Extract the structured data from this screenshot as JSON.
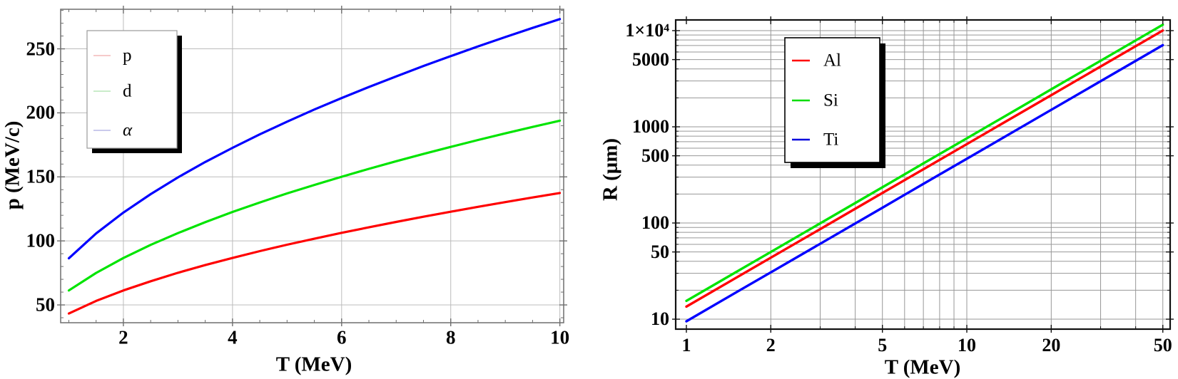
{
  "page": {
    "background": "#ffffff",
    "text_color": "#000000"
  },
  "chart_data": [
    {
      "id": "momentum-vs-kinetic-energy",
      "type": "line",
      "title": "",
      "xlabel": "T (MeV)",
      "ylabel": "p (MeV/c)",
      "xscale": "linear",
      "yscale": "linear",
      "xlim": [
        0.85,
        10.07
      ],
      "ylim": [
        36.1,
        280.9
      ],
      "grid": true,
      "grid_color": "#bcbcbc",
      "frame_color": "#6e6e6e",
      "xgrid": [
        2,
        4,
        6,
        8,
        10
      ],
      "ygrid": [
        50,
        100,
        150,
        200,
        250
      ],
      "xticks": {
        "major": [
          2,
          4,
          6,
          8,
          10
        ],
        "labels": [
          "2",
          "4",
          "6",
          "8",
          "10"
        ],
        "minor": [
          1,
          1.5,
          2.5,
          3,
          3.5,
          4.5,
          5,
          5.5,
          6.5,
          7,
          7.5,
          8.5,
          9,
          9.5
        ]
      },
      "yticks": {
        "major": [
          50,
          100,
          150,
          200,
          250
        ],
        "labels": [
          "50",
          "100",
          "150",
          "200",
          "250"
        ],
        "minor": [
          40,
          60,
          70,
          80,
          90,
          110,
          120,
          130,
          140,
          160,
          170,
          180,
          190,
          210,
          220,
          230,
          240,
          260,
          270,
          280
        ]
      },
      "legend": {
        "position": "top-left",
        "entries": [
          {
            "label": "p",
            "swatch_color": "#f3b9b9",
            "italic": false
          },
          {
            "label": "d",
            "swatch_color": "#b9e6b9",
            "italic": false
          },
          {
            "label": "α",
            "swatch_color": "#b9b9e6",
            "italic": true
          }
        ]
      },
      "series": [
        {
          "name": "p",
          "color": "#ff0000",
          "width": 3.2,
          "x": [
            1,
            1.5,
            2,
            2.5,
            3,
            3.5,
            4,
            4.5,
            5,
            5.5,
            6,
            6.5,
            7,
            7.5,
            8,
            8.5,
            9,
            9.5,
            10
          ],
          "y": [
            43.3,
            53.1,
            61.3,
            68.5,
            75.1,
            81.1,
            86.7,
            92.0,
            97.0,
            101.7,
            106.3,
            110.6,
            114.8,
            118.9,
            122.8,
            126.6,
            130.3,
            133.9,
            137.4
          ]
        },
        {
          "name": "d",
          "color": "#00e400",
          "width": 3.2,
          "x": [
            1,
            1.5,
            2,
            2.5,
            3,
            3.5,
            4,
            4.5,
            5,
            5.5,
            6,
            6.5,
            7,
            7.5,
            8,
            8.5,
            9,
            9.5,
            10
          ],
          "y": [
            61.3,
            75.0,
            86.6,
            96.9,
            106.1,
            114.6,
            122.6,
            130.0,
            137.1,
            143.7,
            150.1,
            156.3,
            162.2,
            167.9,
            173.4,
            178.8,
            184.0,
            189.0,
            193.9
          ]
        },
        {
          "name": "α",
          "color": "#0000ff",
          "width": 3.2,
          "x": [
            1,
            1.5,
            2,
            2.5,
            3,
            3.5,
            4,
            4.5,
            5,
            5.5,
            6,
            6.5,
            7,
            7.5,
            8,
            8.5,
            9,
            9.5,
            10
          ],
          "y": [
            86.4,
            105.8,
            122.1,
            136.5,
            149.6,
            161.6,
            172.7,
            183.2,
            193.1,
            202.6,
            211.6,
            220.2,
            228.5,
            236.6,
            244.3,
            251.9,
            259.2,
            266.3,
            273.2
          ]
        }
      ]
    },
    {
      "id": "range-vs-kinetic-energy",
      "type": "line",
      "title": "",
      "xlabel": "T (MeV)",
      "ylabel": "R (μm)",
      "xscale": "log",
      "yscale": "log",
      "xlim": [
        0.916,
        53.1
      ],
      "ylim": [
        7.88,
        12915
      ],
      "grid": true,
      "grid_color": "#979797",
      "frame_color": "#111111",
      "xgrid": [
        2,
        3,
        4,
        5,
        6,
        7,
        8,
        9,
        10,
        20,
        30,
        40,
        50
      ],
      "ygrid": [
        10,
        20,
        30,
        40,
        50,
        60,
        70,
        80,
        90,
        100,
        200,
        300,
        400,
        500,
        600,
        700,
        800,
        900,
        1000,
        2000,
        3000,
        4000,
        5000,
        6000,
        7000,
        8000,
        9000,
        10000
      ],
      "xticks": {
        "major": [
          1,
          2,
          5,
          10,
          20,
          50
        ],
        "labels": [
          "1",
          "2",
          "5",
          "10",
          "20",
          "50"
        ],
        "minor": [
          3,
          4,
          6,
          7,
          8,
          9,
          30,
          40
        ]
      },
      "yticks": {
        "major": [
          10,
          50,
          100,
          500,
          1000,
          5000,
          10000
        ],
        "labels": [
          "10",
          "50",
          "100",
          "500",
          "1000",
          "5000",
          "1×10⁴"
        ],
        "minor": [
          20,
          30,
          40,
          60,
          70,
          80,
          90,
          200,
          300,
          400,
          600,
          700,
          800,
          900,
          2000,
          3000,
          4000,
          6000,
          7000,
          8000,
          9000
        ]
      },
      "legend": {
        "position": "top-center",
        "entries": [
          {
            "label": "Al",
            "swatch_color": "#ff0000",
            "italic": false
          },
          {
            "label": "Si",
            "swatch_color": "#00dd00",
            "italic": false
          },
          {
            "label": "Ti",
            "swatch_color": "#0000dd",
            "italic": false
          }
        ]
      },
      "series": [
        {
          "name": "Al",
          "color": "#ff0000",
          "width": 3.4,
          "x": [
            1,
            1.5,
            2,
            3,
            5,
            7,
            10,
            15,
            20,
            30,
            50
          ],
          "y": [
            13.5,
            26.8,
            43.6,
            86.4,
            205,
            362,
            661,
            1312,
            2134,
            4234,
            10036
          ]
        },
        {
          "name": "Si",
          "color": "#00e400",
          "width": 3.4,
          "x": [
            1,
            1.5,
            2,
            3,
            5,
            7,
            10,
            15,
            20,
            30,
            50
          ],
          "y": [
            15.5,
            30.8,
            50.0,
            99.2,
            235,
            416,
            759,
            1507,
            2451,
            4861,
            11523
          ]
        },
        {
          "name": "Ti",
          "color": "#0000ff",
          "width": 3.4,
          "x": [
            1,
            1.5,
            2,
            3,
            5,
            7,
            10,
            15,
            20,
            30,
            50
          ],
          "y": [
            9.5,
            18.9,
            30.7,
            60.8,
            144,
            255,
            465,
            923,
            1502,
            2979,
            7062
          ]
        }
      ]
    }
  ]
}
